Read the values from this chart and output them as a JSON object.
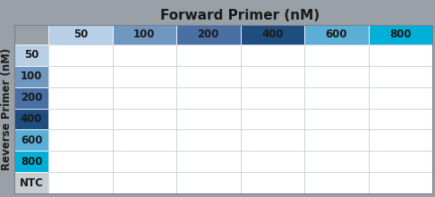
{
  "title": "Forward Primer (nM)",
  "ylabel": "Reverse Primer (nM)",
  "col_labels": [
    "50",
    "100",
    "200",
    "400",
    "600",
    "800"
  ],
  "row_labels": [
    "50",
    "100",
    "200",
    "400",
    "600",
    "800",
    "NTC"
  ],
  "col_colors": [
    "#b8cfe8",
    "#7097c0",
    "#4a6fa5",
    "#1e4d80",
    "#5bafd6",
    "#00b0d8"
  ],
  "row_colors": [
    "#b8cfe8",
    "#7097c0",
    "#4a6fa5",
    "#1e4d80",
    "#5bafd6",
    "#00b0d8",
    "#c8cdd2"
  ],
  "grid_color": "#c0d0e0",
  "cell_bg": "#ffffff",
  "outer_bg": "#9aa0a8",
  "title_fontsize": 11,
  "label_fontsize": 8.5
}
